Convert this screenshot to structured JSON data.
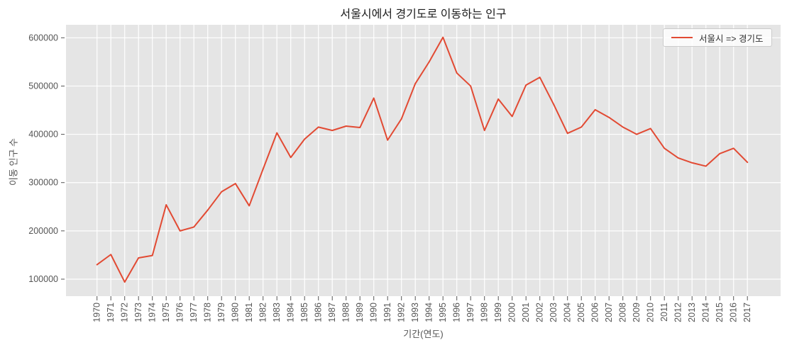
{
  "title": "서울시에서 경기도로 이동하는 인구",
  "x_axis_label": "기간(연도)",
  "y_axis_label": "이동 인구 수",
  "legend": {
    "label": "서울시 => 경기도"
  },
  "colors": {
    "line": "#E24A33",
    "plot_bg": "#E5E5E5",
    "grid": "#FFFFFF",
    "tick_text": "#555555",
    "title_text": "#1C1C1C",
    "legend_border": "#CBCBCB"
  },
  "chart_data": {
    "type": "line",
    "title": "서울시에서 경기도로 이동하는 인구",
    "xlabel": "기간(연도)",
    "ylabel": "이동 인구 수",
    "grid": true,
    "legend_position": "upper right",
    "x": [
      1970,
      1971,
      1972,
      1973,
      1974,
      1975,
      1976,
      1977,
      1978,
      1979,
      1980,
      1981,
      1982,
      1983,
      1984,
      1985,
      1986,
      1987,
      1988,
      1989,
      1990,
      1991,
      1992,
      1993,
      1994,
      1995,
      1996,
      1997,
      1998,
      1999,
      2000,
      2001,
      2002,
      2003,
      2004,
      2005,
      2006,
      2007,
      2008,
      2009,
      2010,
      2011,
      2012,
      2013,
      2014,
      2015,
      2016,
      2017
    ],
    "y_ticks": [
      100000,
      200000,
      300000,
      400000,
      500000,
      600000
    ],
    "ylim": [
      64500,
      627000
    ],
    "xlim": [
      1967.8,
      2019.4
    ],
    "series": [
      {
        "name": "서울시 => 경기도",
        "color": "#E24A33",
        "values": [
          130000,
          151000,
          94000,
          144000,
          149000,
          254000,
          200000,
          208000,
          243000,
          281000,
          298000,
          252000,
          328000,
          403000,
          352000,
          390000,
          415000,
          408000,
          417000,
          414000,
          475000,
          388000,
          432000,
          505000,
          550000,
          601000,
          527000,
          500000,
          408000,
          473000,
          437000,
          502000,
          518000,
          462000,
          402000,
          415000,
          451000,
          435000,
          415000,
          400000,
          412000,
          371000,
          351000,
          341000,
          334000,
          360000,
          371000,
          342000
        ]
      }
    ]
  }
}
